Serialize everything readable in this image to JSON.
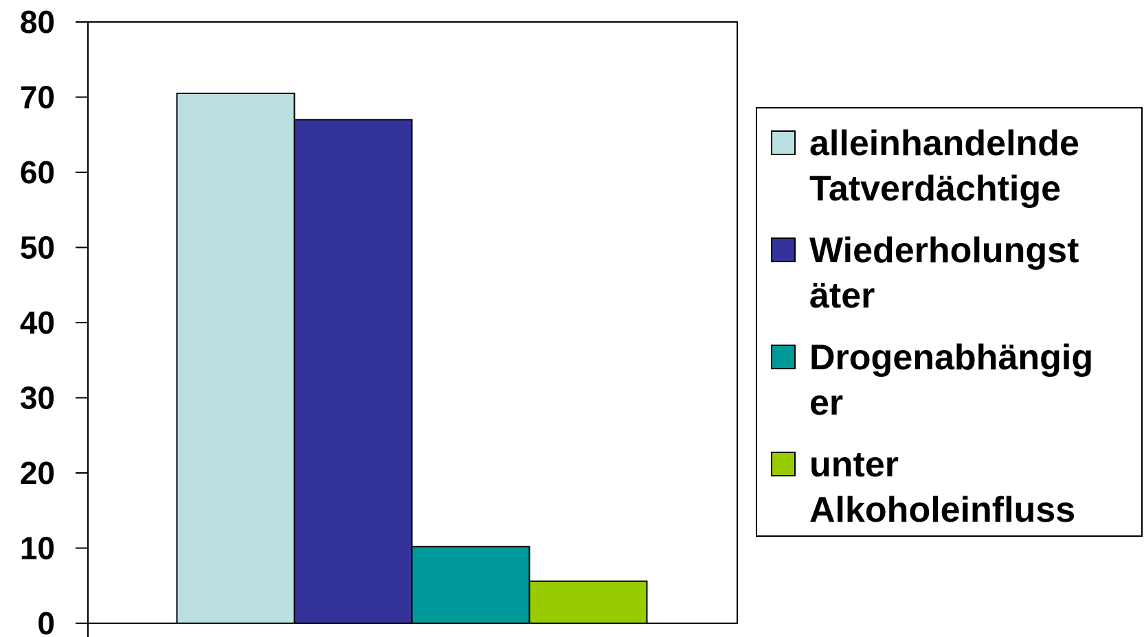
{
  "chart_data": {
    "type": "bar",
    "categories": [
      ""
    ],
    "series": [
      {
        "name": "alleinhandelnde Tatverdächtige",
        "legend_lines": [
          "alleinhandelnde",
          "Tatverdächtige"
        ],
        "values": [
          70.5
        ],
        "color": "#BAE0E2"
      },
      {
        "name": "Wiederholungstäter",
        "legend_lines": [
          "Wiederholungst",
          "äter"
        ],
        "values": [
          67
        ],
        "color": "#333399"
      },
      {
        "name": "Drogenabhängiger",
        "legend_lines": [
          "Drogenabhängig",
          "er"
        ],
        "values": [
          10.2
        ],
        "color": "#009999"
      },
      {
        "name": "unter Alkoholeinfluss",
        "legend_lines": [
          "unter",
          "Alkoholeinfluss"
        ],
        "values": [
          5.6
        ],
        "color": "#99CC00"
      }
    ],
    "yticks": [
      "0",
      "10",
      "20",
      "30",
      "40",
      "50",
      "60",
      "70",
      "80"
    ],
    "ylim": [
      0,
      80
    ],
    "title": "",
    "xlabel": "",
    "ylabel": "",
    "grid": false,
    "legend_position": "right"
  }
}
